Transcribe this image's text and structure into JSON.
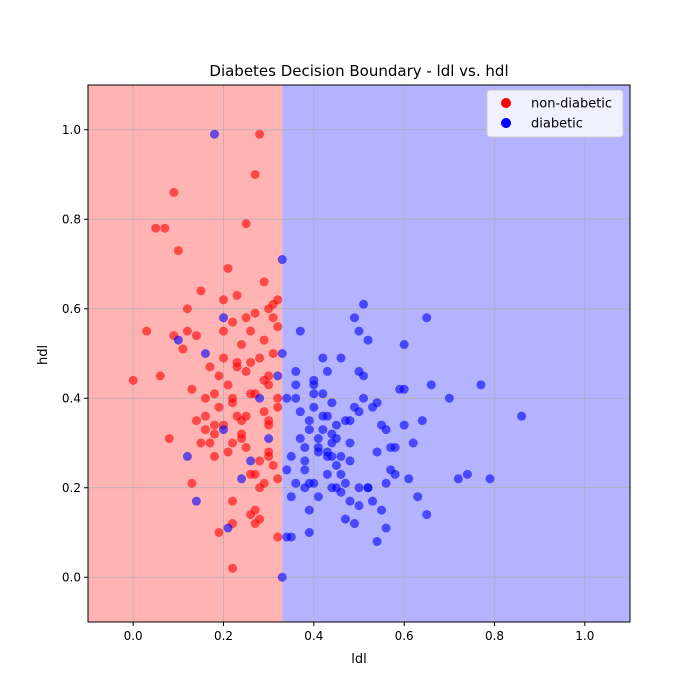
{
  "chart_data": {
    "type": "scatter",
    "title": "Diabetes Decision Boundary - ldl vs. hdl",
    "xlabel": "ldl",
    "ylabel": "hdl",
    "xlim": [
      -0.1,
      1.1
    ],
    "ylim": [
      -0.1,
      1.1
    ],
    "xticks": [
      0.0,
      0.2,
      0.4,
      0.6,
      0.8,
      1.0
    ],
    "yticks": [
      0.0,
      0.2,
      0.4,
      0.6,
      0.8,
      1.0
    ],
    "xtick_labels": [
      "0.0",
      "0.2",
      "0.4",
      "0.6",
      "0.8",
      "1.0"
    ],
    "ytick_labels": [
      "0.0",
      "0.2",
      "0.4",
      "0.6",
      "0.8",
      "1.0"
    ],
    "grid": true,
    "legend_position": "top-right",
    "decision_boundary": {
      "feature": "ldl",
      "threshold": 0.33,
      "left_region": "non-diabetic",
      "right_region": "diabetic",
      "left_color": "#ffb3b3",
      "right_color": "#b3b3ff"
    },
    "series": [
      {
        "name": "non-diabetic",
        "color": "#ff0000",
        "x": [
          0.0,
          0.03,
          0.06,
          0.08,
          0.09,
          0.12,
          0.13,
          0.15,
          0.16,
          0.17,
          0.18,
          0.2,
          0.21,
          0.22,
          0.24,
          0.26,
          0.28,
          0.3,
          0.32,
          0.05,
          0.11,
          0.14,
          0.19,
          0.23,
          0.25,
          0.27,
          0.29,
          0.31,
          0.1,
          0.15,
          0.18,
          0.2,
          0.22,
          0.24,
          0.26,
          0.28,
          0.3,
          0.32,
          0.07,
          0.12,
          0.16,
          0.19,
          0.21,
          0.23,
          0.25,
          0.27,
          0.29,
          0.31,
          0.09,
          0.13,
          0.17,
          0.2,
          0.22,
          0.24,
          0.26,
          0.28,
          0.3,
          0.32,
          0.14,
          0.18,
          0.21,
          0.23,
          0.25,
          0.27,
          0.29,
          0.31,
          0.16,
          0.2,
          0.22,
          0.24,
          0.26,
          0.28,
          0.3,
          0.32,
          0.19,
          0.22,
          0.25,
          0.27,
          0.29,
          0.31,
          0.22,
          0.26,
          0.28,
          0.3,
          0.32,
          0.23,
          0.27,
          0.3,
          0.25,
          0.29,
          0.32,
          0.27,
          0.3,
          0.22,
          0.18
        ],
        "y": [
          0.44,
          0.55,
          0.45,
          0.31,
          0.86,
          0.6,
          0.42,
          0.64,
          0.33,
          0.47,
          0.41,
          0.62,
          0.69,
          0.57,
          0.52,
          0.55,
          0.49,
          0.43,
          0.4,
          0.78,
          0.51,
          0.35,
          0.38,
          0.63,
          0.46,
          0.9,
          0.66,
          0.58,
          0.73,
          0.3,
          0.27,
          0.34,
          0.4,
          0.31,
          0.48,
          0.26,
          0.34,
          0.62,
          0.78,
          0.55,
          0.36,
          0.45,
          0.28,
          0.48,
          0.36,
          0.59,
          0.37,
          0.61,
          0.54,
          0.21,
          0.3,
          0.49,
          0.17,
          0.35,
          0.23,
          0.99,
          0.27,
          0.56,
          0.54,
          0.32,
          0.43,
          0.36,
          0.29,
          0.41,
          0.53,
          0.5,
          0.4,
          0.55,
          0.3,
          0.32,
          0.14,
          0.2,
          0.6,
          0.38,
          0.1,
          0.12,
          0.79,
          0.15,
          0.44,
          0.25,
          0.02,
          0.41,
          0.13,
          0.35,
          0.22,
          0.47,
          0.23,
          0.28,
          0.58,
          0.21,
          0.09,
          0.12,
          0.45,
          0.39,
          0.34
        ]
      },
      {
        "name": "diabetic",
        "color": "#0000ff",
        "x": [
          0.1,
          0.14,
          0.18,
          0.2,
          0.21,
          0.24,
          0.26,
          0.28,
          0.3,
          0.33,
          0.34,
          0.35,
          0.36,
          0.37,
          0.38,
          0.39,
          0.4,
          0.41,
          0.42,
          0.43,
          0.44,
          0.45,
          0.46,
          0.47,
          0.48,
          0.49,
          0.5,
          0.51,
          0.52,
          0.53,
          0.54,
          0.55,
          0.56,
          0.57,
          0.58,
          0.59,
          0.6,
          0.61,
          0.62,
          0.63,
          0.64,
          0.65,
          0.66,
          0.7,
          0.72,
          0.74,
          0.77,
          0.79,
          0.86,
          0.34,
          0.36,
          0.38,
          0.4,
          0.42,
          0.44,
          0.46,
          0.48,
          0.5,
          0.52,
          0.54,
          0.56,
          0.58,
          0.6,
          0.35,
          0.37,
          0.39,
          0.41,
          0.43,
          0.45,
          0.47,
          0.49,
          0.51,
          0.53,
          0.55,
          0.57,
          0.33,
          0.36,
          0.38,
          0.4,
          0.42,
          0.44,
          0.46,
          0.48,
          0.5,
          0.52,
          0.54,
          0.56,
          0.34,
          0.37,
          0.39,
          0.41,
          0.43,
          0.45,
          0.47,
          0.49,
          0.51,
          0.35,
          0.38,
          0.4,
          0.42,
          0.44,
          0.46,
          0.48,
          0.5,
          0.36,
          0.39,
          0.41,
          0.43,
          0.45,
          0.33,
          0.4,
          0.44,
          0.5,
          0.6,
          0.65,
          0.32,
          0.39,
          0.43,
          0.2,
          0.16,
          0.12
        ],
        "y": [
          0.53,
          0.17,
          0.99,
          0.58,
          0.11,
          0.22,
          0.26,
          0.4,
          0.31,
          0.5,
          0.09,
          0.27,
          0.4,
          0.55,
          0.2,
          0.33,
          0.44,
          0.18,
          0.36,
          0.23,
          0.27,
          0.31,
          0.49,
          0.13,
          0.26,
          0.58,
          0.37,
          0.61,
          0.53,
          0.38,
          0.08,
          0.34,
          0.11,
          0.24,
          0.29,
          0.42,
          0.34,
          0.22,
          0.3,
          0.18,
          0.35,
          0.14,
          0.43,
          0.4,
          0.22,
          0.23,
          0.43,
          0.22,
          0.36,
          0.24,
          0.21,
          0.29,
          0.41,
          0.49,
          0.32,
          0.23,
          0.17,
          0.55,
          0.2,
          0.28,
          0.33,
          0.23,
          0.52,
          0.18,
          0.37,
          0.15,
          0.31,
          0.46,
          0.2,
          0.35,
          0.38,
          0.45,
          0.17,
          0.15,
          0.29,
          0.0,
          0.46,
          0.26,
          0.21,
          0.33,
          0.39,
          0.27,
          0.3,
          0.46,
          0.2,
          0.39,
          0.21,
          0.4,
          0.31,
          0.1,
          0.28,
          0.36,
          0.25,
          0.21,
          0.12,
          0.4,
          0.09,
          0.24,
          0.38,
          0.41,
          0.3,
          0.19,
          0.35,
          0.2,
          0.43,
          0.35,
          0.29,
          0.27,
          0.34,
          0.71,
          0.43,
          0.2,
          0.16,
          0.42,
          0.58,
          0.45,
          0.21,
          0.28,
          0.33,
          0.5,
          0.27
        ]
      }
    ]
  }
}
